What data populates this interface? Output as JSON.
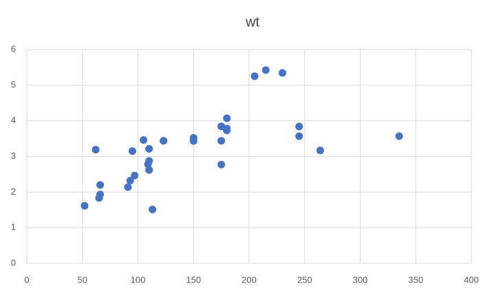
{
  "chart_data": {
    "type": "scatter",
    "title": "wt",
    "color": "#4472c4",
    "grid": true,
    "series": [
      {
        "name": "wt",
        "x": [
          110,
          110,
          93,
          110,
          175,
          105,
          245,
          62,
          95,
          123,
          123,
          180,
          180,
          180,
          205,
          215,
          230,
          66,
          52,
          65,
          97,
          150,
          150,
          245,
          175,
          66,
          91,
          113,
          264,
          175,
          335,
          109
        ],
        "values": [
          2.62,
          2.875,
          2.32,
          3.215,
          3.44,
          3.46,
          3.57,
          3.19,
          3.15,
          3.44,
          3.44,
          4.07,
          3.73,
          3.78,
          5.25,
          5.424,
          5.345,
          2.2,
          1.615,
          1.835,
          2.465,
          3.52,
          3.435,
          3.84,
          3.845,
          1.935,
          2.14,
          1.513,
          3.17,
          2.77,
          3.57,
          2.78
        ]
      }
    ],
    "xlim": [
      0,
      400
    ],
    "xticks": [
      0,
      50,
      100,
      150,
      200,
      250,
      300,
      350,
      400
    ],
    "ylim": [
      0,
      6
    ],
    "yticks": [
      0,
      1,
      2,
      3,
      4,
      5,
      6
    ]
  }
}
